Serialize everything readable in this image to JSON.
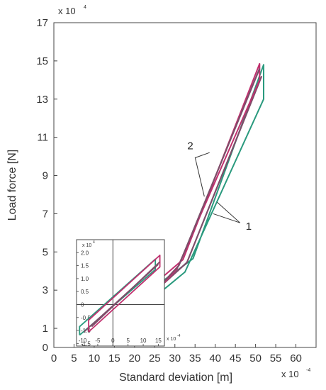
{
  "chart_data": [
    {
      "type": "line",
      "xlabel": "Standard deviation [m]",
      "ylabel": "Load force [N]",
      "x_multiplier": "x 10",
      "x_multiplier_exp": "-4",
      "y_multiplier": "x 10",
      "y_multiplier_exp": "4",
      "xlim": [
        0,
        65
      ],
      "ylim": [
        0,
        17
      ],
      "x_ticks": [
        "0",
        "5",
        "10",
        "15",
        "20",
        "25",
        "30",
        "35",
        "40",
        "45",
        "50",
        "55",
        "60"
      ],
      "y_ticks": [
        "0",
        "1",
        "3",
        "5",
        "7",
        "9",
        "11",
        "13",
        "15",
        "17"
      ],
      "grid": false,
      "colors": {
        "series_1": "#2a9a7e",
        "series_2": "#c0306e",
        "outline": "#7d4e6a"
      },
      "series": [
        {
          "name": "1",
          "paths": [
            {
              "x": [
                15,
                15,
                34.5,
                52,
                52,
                32.5,
                15
              ],
              "y": [
                0.9,
                1.6,
                4.65,
                14.8,
                13.0,
                3.95,
                0.9
              ]
            },
            {
              "x": [
                16.5,
                33,
                51.5
              ],
              "y": [
                1.3,
                4.45,
                14.2
              ]
            }
          ]
        },
        {
          "name": "2",
          "paths": [
            {
              "x": [
                17,
                17,
                32,
                51,
                51,
                30.5,
                17
              ],
              "y": [
                1.05,
                1.9,
                4.6,
                14.85,
                14.0,
                4.1,
                1.05
              ]
            },
            {
              "x": [
                17.5,
                31,
                51
              ],
              "y": [
                1.2,
                4.3,
                14.6
              ]
            }
          ]
        }
      ],
      "annotations": [
        {
          "text": "2",
          "x": 34.5,
          "y": 10.3
        },
        {
          "text": "1",
          "x": 46.5,
          "y": 6.6
        }
      ]
    },
    {
      "type": "line",
      "note": "inset",
      "x_multiplier": "x 10",
      "x_multiplier_exp": "-4",
      "y_multiplier": "x 10",
      "y_multiplier_exp": "4",
      "xlim": [
        -12,
        17
      ],
      "ylim": [
        -1.6,
        2.5
      ],
      "x_ticks": [
        "-10",
        "-5",
        "0",
        "5",
        "10",
        "15"
      ],
      "y_ticks": [
        "-1.5",
        "-1.0",
        "-0.5",
        "0",
        "0.5",
        "1.0",
        "1.5",
        "2.0"
      ],
      "series": [
        {
          "name": "1",
          "paths": [
            {
              "x": [
                -11,
                -11,
                14,
                14,
                -11
              ],
              "y": [
                -1.18,
                -0.85,
                1.75,
                1.35,
                -1.18
              ]
            },
            {
              "x": [
                -9.5,
                15
              ],
              "y": [
                -1.05,
                1.55
              ]
            }
          ]
        },
        {
          "name": "2",
          "paths": [
            {
              "x": [
                -8,
                -8,
                15.5,
                15.5,
                -8
              ],
              "y": [
                -1.05,
                -0.6,
                1.9,
                1.45,
                -1.05
              ]
            },
            {
              "x": [
                -7,
                15.5
              ],
              "y": [
                -0.85,
                1.65
              ]
            }
          ]
        }
      ]
    }
  ]
}
